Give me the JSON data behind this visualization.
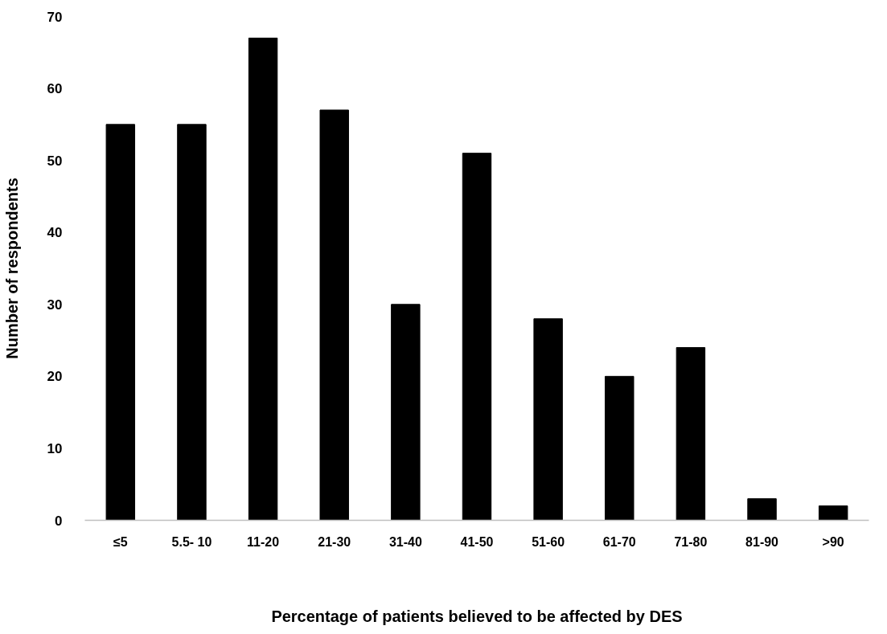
{
  "chart_data": {
    "type": "bar",
    "xlabel": "Percentage of patients believed to be affected by DES",
    "ylabel": "Number of respondents",
    "categories": [
      "≤5",
      "5.5- 10",
      "11-20",
      "21-30",
      "31-40",
      "41-50",
      "51-60",
      "61-70",
      "71-80",
      "81-90",
      ">90"
    ],
    "values": [
      55,
      55,
      67,
      57,
      30,
      51,
      28,
      20,
      24,
      3,
      2
    ],
    "color": "#000000",
    "ylim": [
      0,
      70
    ],
    "yticks": [
      0,
      10,
      20,
      30,
      40,
      50,
      60,
      70
    ],
    "grid": false
  }
}
